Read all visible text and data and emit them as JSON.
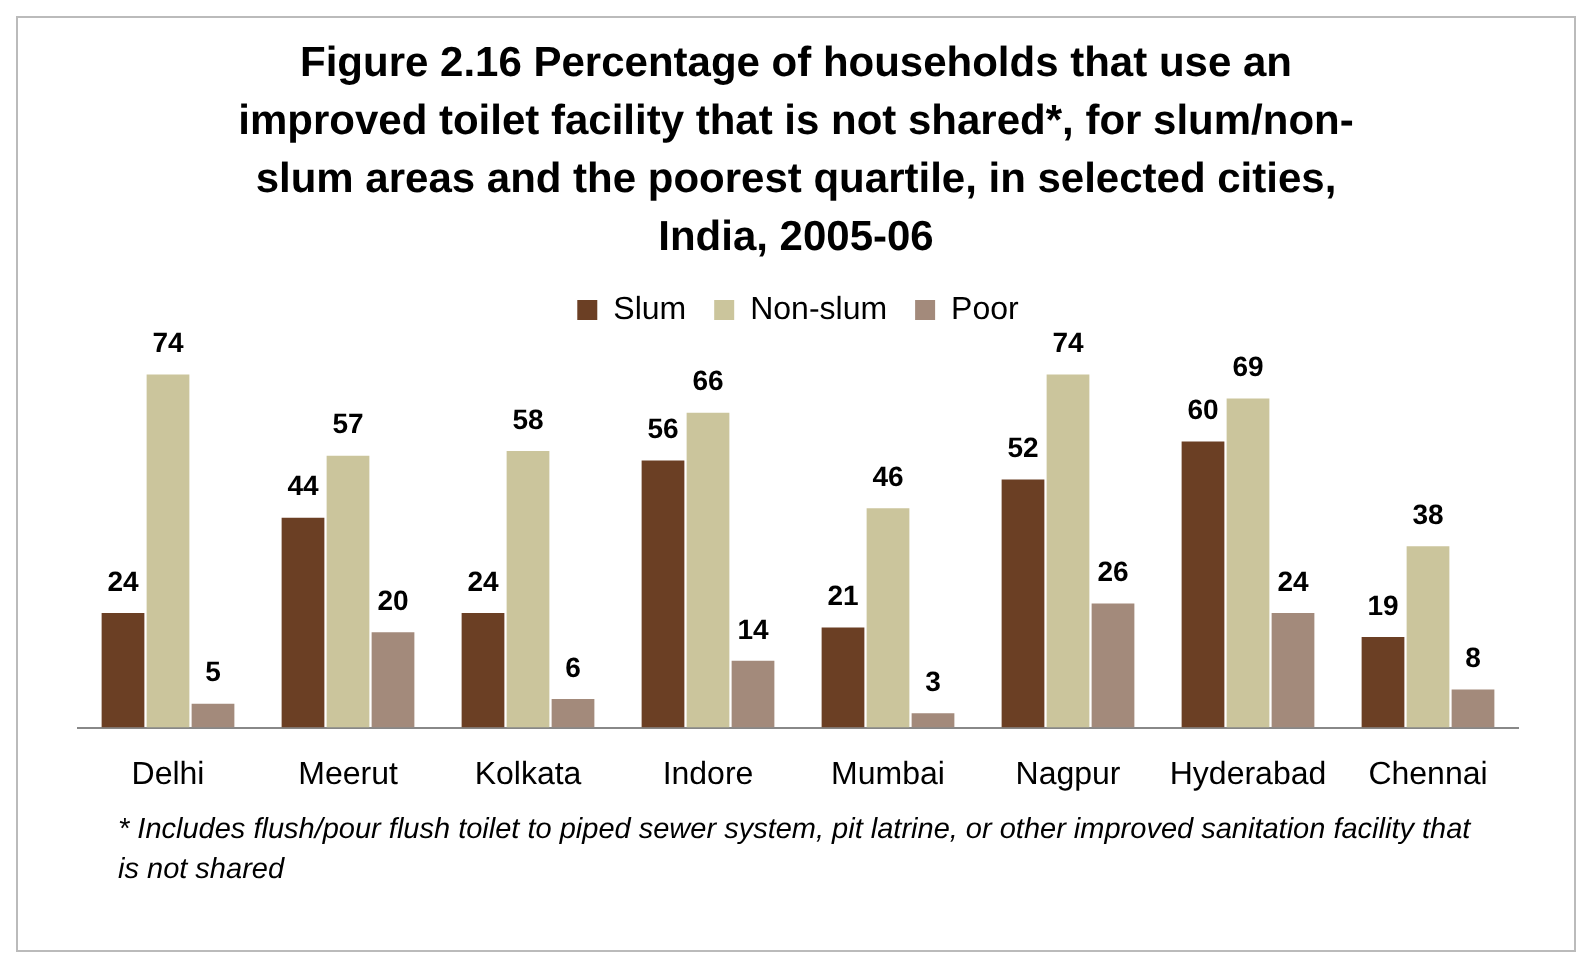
{
  "chart_data": {
    "type": "bar",
    "title": "Figure 2.16 Percentage of households that use an improved toilet facility that is not shared*, for slum/non-slum areas and the poorest quartile, in selected cities, India, 2005-06",
    "categories": [
      "Delhi",
      "Meerut",
      "Kolkata",
      "Indore",
      "Mumbai",
      "Nagpur",
      "Hyderabad",
      "Chennai"
    ],
    "series": [
      {
        "name": "Slum",
        "color": "#6b3f24",
        "values": [
          24,
          44,
          24,
          56,
          21,
          52,
          60,
          19
        ]
      },
      {
        "name": "Non-slum",
        "color": "#cbc59c",
        "values": [
          74,
          57,
          58,
          66,
          46,
          74,
          69,
          38
        ]
      },
      {
        "name": "Poor",
        "color": "#a38a7b",
        "values": [
          5,
          20,
          6,
          14,
          3,
          26,
          24,
          8
        ]
      }
    ],
    "data_labels": true,
    "legend": "top",
    "grid": false,
    "annotations": [
      "* Includes flush/pour flush toilet to piped sewer system, pit latrine, or other improved sanitation facility that is not shared"
    ]
  }
}
